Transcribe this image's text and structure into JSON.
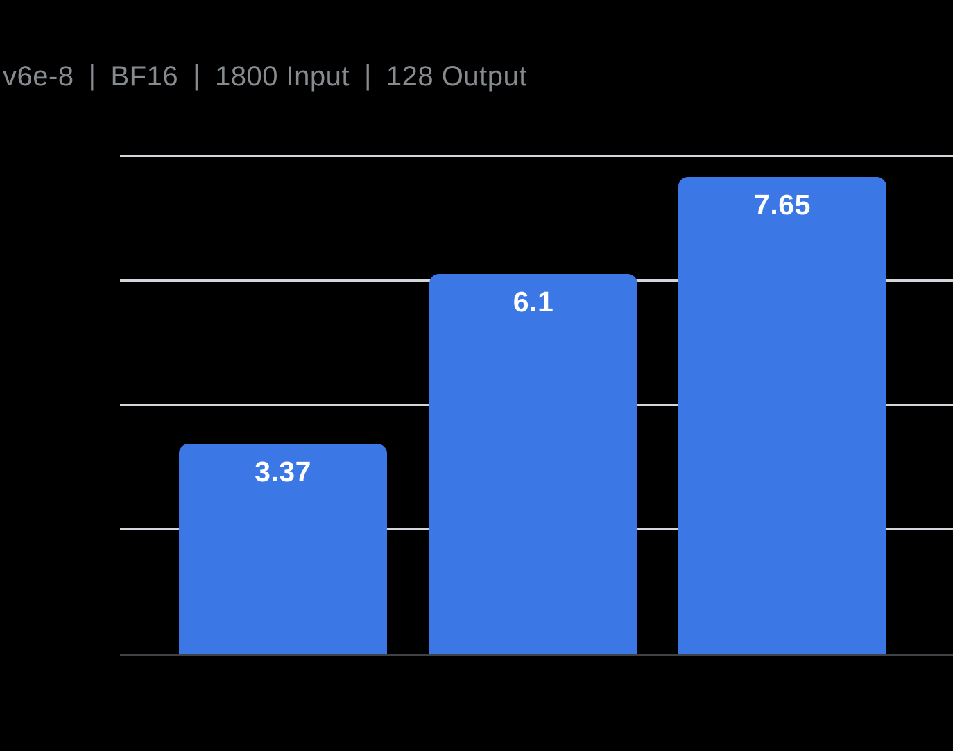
{
  "header": {
    "parts": [
      "v6e-8",
      "BF16",
      "1800 Input",
      "128 Output"
    ],
    "separator": "|"
  },
  "chart_data": {
    "type": "bar",
    "title": "v6e-8 | BF16 | 1800 Input | 128 Output",
    "values": [
      3.37,
      6.1,
      7.65
    ],
    "value_labels": [
      "3.37",
      "6.1",
      "7.65"
    ],
    "ylim": [
      0,
      8
    ],
    "gridline_values": [
      2,
      4,
      6,
      8
    ],
    "grid": "horizontal",
    "legend_position": "none",
    "axis_tick_labels_visible": false,
    "colors": {
      "background": "#000000",
      "bar": "#3B78E6",
      "bar_label": "#FFFFFF",
      "title": "#868B90",
      "gridline": "#D2D6DC",
      "axis_line": "#3F4247"
    }
  }
}
